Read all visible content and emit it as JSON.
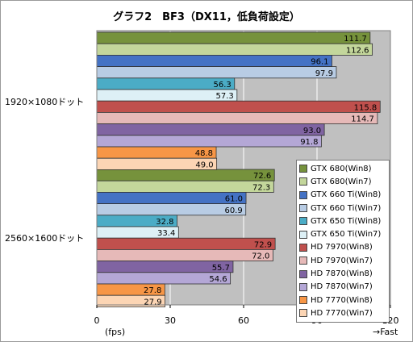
{
  "chart_data": {
    "type": "bar",
    "orientation": "horizontal",
    "title": "グラフ2　BF3（DX11，低負荷設定）",
    "categories": [
      "1920×1080ドット",
      "2560×1600ドット"
    ],
    "xlim": [
      0,
      120
    ],
    "xticks": [
      "0",
      "30",
      "60",
      "90",
      "120"
    ],
    "xlabel": "(fps)",
    "direction_note": "→Fast",
    "grid": true,
    "legend_position": "right",
    "series": [
      {
        "name": "GTX 680(Win8)",
        "color": "#76923c",
        "values": [
          111.7,
          72.6
        ]
      },
      {
        "name": "GTX 680(Win7)",
        "color": "#c3d69b",
        "values": [
          112.6,
          72.3
        ]
      },
      {
        "name": "GTX 660 Ti(Win8)",
        "color": "#4472c4",
        "values": [
          96.1,
          61.0
        ]
      },
      {
        "name": "GTX 660 Ti(Win7)",
        "color": "#b8cce4",
        "values": [
          97.9,
          60.9
        ]
      },
      {
        "name": "GTX 650 Ti(Win8)",
        "color": "#4bacc6",
        "values": [
          56.3,
          32.8
        ]
      },
      {
        "name": "GTX 650 Ti(Win7)",
        "color": "#ddf0f6",
        "values": [
          57.3,
          33.4
        ]
      },
      {
        "name": "HD 7970(Win8)",
        "color": "#c0504d",
        "values": [
          115.8,
          72.9
        ]
      },
      {
        "name": "HD 7970(Win7)",
        "color": "#e6b9b8",
        "values": [
          114.7,
          72.0
        ]
      },
      {
        "name": "HD 7870(Win8)",
        "color": "#8064a2",
        "values": [
          93.0,
          55.7
        ]
      },
      {
        "name": "HD 7870(Win7)",
        "color": "#b4a7d6",
        "values": [
          91.8,
          54.6
        ]
      },
      {
        "name": "HD 7770(Win8)",
        "color": "#f79646",
        "values": [
          48.8,
          27.8
        ]
      },
      {
        "name": "HD 7770(Win7)",
        "color": "#fcd5b4",
        "values": [
          49.0,
          27.9
        ]
      }
    ]
  }
}
